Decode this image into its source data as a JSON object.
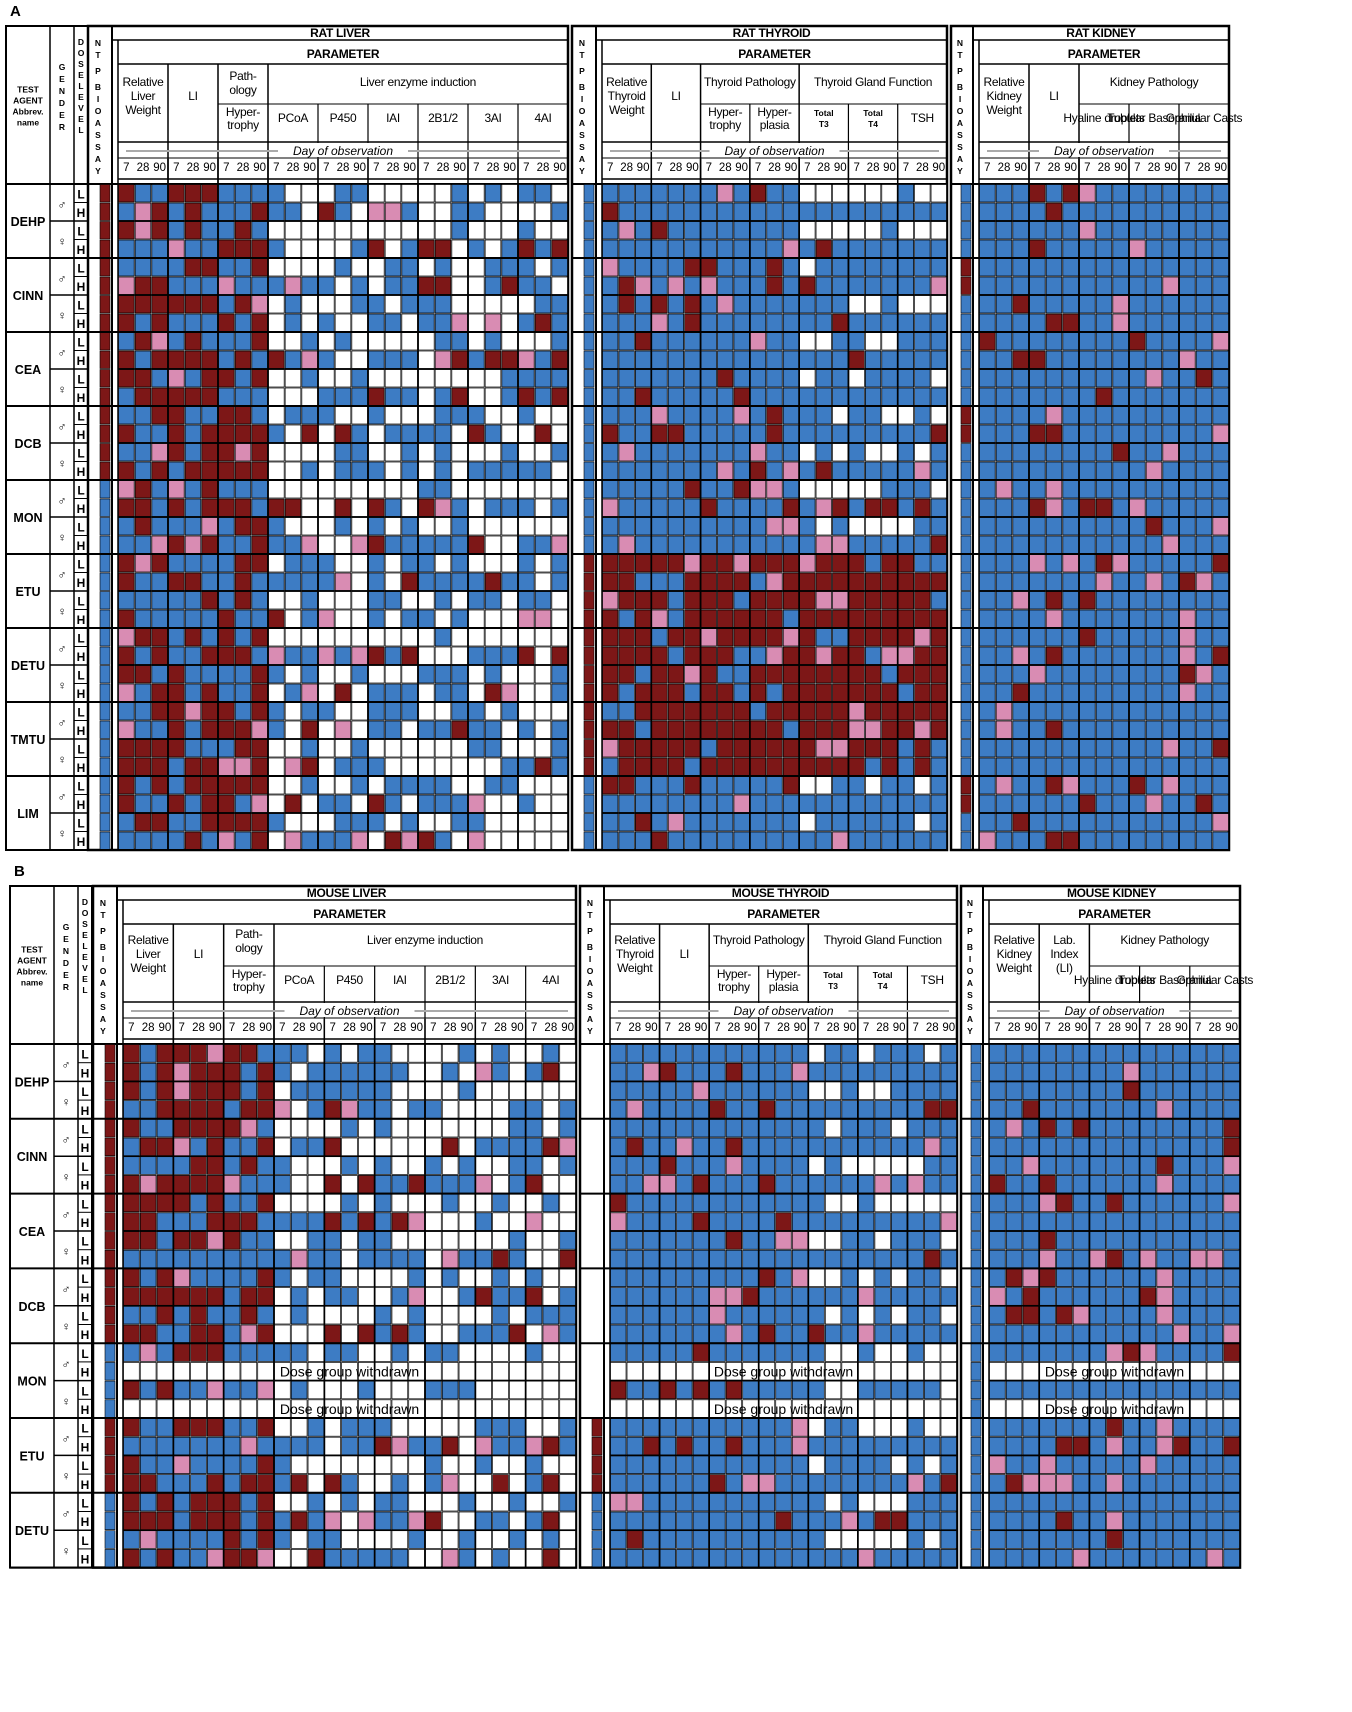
{
  "chart_data": {
    "type": "heatmap",
    "panel_labels": [
      "A",
      "B"
    ],
    "left_header": {
      "test_agent": [
        "TEST",
        "AGENT",
        "Abbrev.",
        "name"
      ],
      "gender": "GENDER",
      "dose": "DOSE LEVEL",
      "ntp": "NTP BIOASSAY"
    },
    "genders": [
      "♂",
      "♀"
    ],
    "dose_levels": [
      "L",
      "H"
    ],
    "day_of_observation": "Day of observation",
    "days": [
      "7",
      "28",
      "90"
    ],
    "parameter_label": "PARAMETER",
    "legend_colors": {
      "strong_effect": "#7d1717",
      "weak_effect": "#d98cb3",
      "no_effect": "#3d7cc4",
      "not_measured": "#ffffff"
    },
    "withdrawn_text": "Dose group withdrawn",
    "panels": [
      {
        "label": "A",
        "agents": [
          "DEHP",
          "CINN",
          "CEA",
          "DCB",
          "MON",
          "ETU",
          "DETU",
          "TMTU",
          "LIM"
        ],
        "sections": [
          {
            "title": "RAT LIVER",
            "groups": [
              {
                "label": "Relative Liver Weight",
                "columns": [
                  ""
                ]
              },
              {
                "label": "LI",
                "columns": [
                  ""
                ]
              },
              {
                "label": "Path-ology",
                "columns": [
                  "Hyper-trophy"
                ]
              },
              {
                "label": "Liver enzyme induction",
                "columns": [
                  "PCoA",
                  "P450",
                  "IAI",
                  "2B1/2",
                  "3AI",
                  "4AI"
                ]
              }
            ]
          },
          {
            "title": "RAT THYROID",
            "groups": [
              {
                "label": "Relative Thyroid Weight",
                "columns": [
                  ""
                ]
              },
              {
                "label": "LI",
                "columns": [
                  ""
                ]
              },
              {
                "label": "Thyroid Pathology",
                "columns": [
                  "Hyper-trophy",
                  "Hyper-plasia"
                ]
              },
              {
                "label": "Thyroid Gland Function",
                "columns": [
                  "Total T3",
                  "Total T4",
                  "TSH"
                ]
              }
            ]
          },
          {
            "title": "RAT KIDNEY",
            "groups": [
              {
                "label": "Relative Kidney Weight",
                "columns": [
                  ""
                ]
              },
              {
                "label": "LI",
                "columns": [
                  ""
                ]
              },
              {
                "label": "Kidney Pathology",
                "columns": [
                  "Hyaline droplets",
                  "Tubular Basophilia",
                  "Granular Casts"
                ]
              }
            ]
          }
        ]
      },
      {
        "label": "B",
        "agents": [
          "DEHP",
          "CINN",
          "CEA",
          "DCB",
          "MON",
          "ETU",
          "DETU"
        ],
        "withdrawn": {
          "MON": [
            "L",
            "H"
          ]
        },
        "sections": [
          {
            "title": "MOUSE LIVER",
            "groups": [
              {
                "label": "Relative Liver Weight",
                "columns": [
                  ""
                ]
              },
              {
                "label": "LI",
                "columns": [
                  ""
                ]
              },
              {
                "label": "Path-ology",
                "columns": [
                  "Hyper-trophy"
                ]
              },
              {
                "label": "Liver enzyme induction",
                "columns": [
                  "PCoA",
                  "P450",
                  "IAI",
                  "2B1/2",
                  "3AI",
                  "4AI"
                ]
              }
            ]
          },
          {
            "title": "MOUSE THYROID",
            "groups": [
              {
                "label": "Relative Thyroid Weight",
                "columns": [
                  ""
                ]
              },
              {
                "label": "LI",
                "columns": [
                  ""
                ]
              },
              {
                "label": "Thyroid Pathology",
                "columns": [
                  "Hyper-trophy",
                  "Hyper-plasia"
                ]
              },
              {
                "label": "Thyroid Gland Function",
                "columns": [
                  "Total T3",
                  "Total T4",
                  "TSH"
                ]
              }
            ]
          },
          {
            "title": "MOUSE KIDNEY",
            "groups": [
              {
                "label": "Relative Kidney Weight",
                "columns": [
                  ""
                ]
              },
              {
                "label": "Lab. Index (LI)",
                "columns": [
                  ""
                ]
              },
              {
                "label": "Kidney Pathology",
                "columns": [
                  "Hyaline droplets",
                  "Tubular Basophilia",
                  "Granular Casts"
                ]
              }
            ]
          }
        ]
      }
    ]
  }
}
